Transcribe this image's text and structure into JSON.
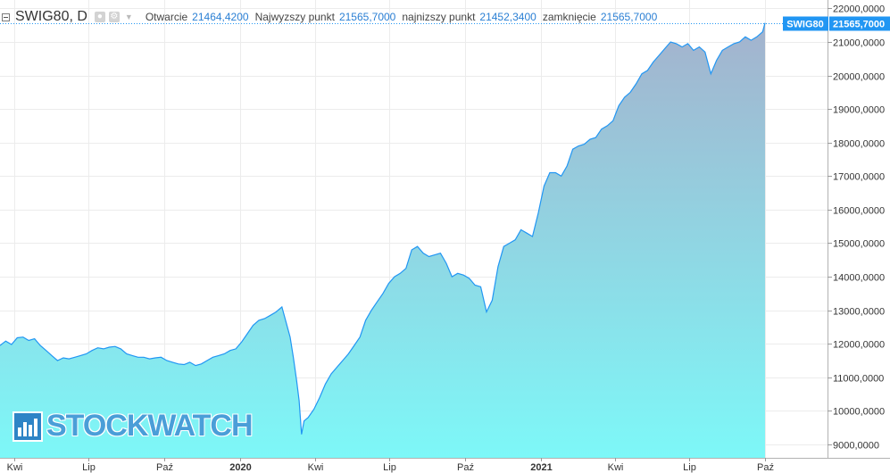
{
  "legend": {
    "symbol": "SWIG80, D",
    "items": [
      {
        "label": "Otwarcie",
        "value": "21464,4200"
      },
      {
        "label": "Najwyzszy punkt",
        "value": "21565,7000"
      },
      {
        "label": "najnizszy punkt",
        "value": "21452,3400"
      },
      {
        "label": "zamknięcie",
        "value": "21565,7000"
      }
    ]
  },
  "watermark": {
    "text": "STOCKWATCH"
  },
  "colors": {
    "line": "#2196f3",
    "area_top": "#a4b2cd",
    "area_bottom": "#7df8f8",
    "badge": "#2196f3"
  },
  "chart_data": {
    "type": "area",
    "series": [
      {
        "name": "SWIG80"
      }
    ],
    "last_label": {
      "name": "SWIG80",
      "value": "21565,7000"
    },
    "ylim": [
      8600,
      22250
    ],
    "y_ticks": [
      {
        "value": 9000,
        "label": "9000,0000"
      },
      {
        "value": 10000,
        "label": "10000,0000"
      },
      {
        "value": 11000,
        "label": "11000,0000"
      },
      {
        "value": 12000,
        "label": "12000,0000"
      },
      {
        "value": 13000,
        "label": "13000,0000"
      },
      {
        "value": 14000,
        "label": "14000,0000"
      },
      {
        "value": 15000,
        "label": "15000,0000"
      },
      {
        "value": 16000,
        "label": "16000,0000"
      },
      {
        "value": 17000,
        "label": "17000,0000"
      },
      {
        "value": 18000,
        "label": "18000,0000"
      },
      {
        "value": 19000,
        "label": "19000,0000"
      },
      {
        "value": 20000,
        "label": "20000,0000"
      },
      {
        "value": 21000,
        "label": "21000,0000"
      },
      {
        "value": 22000,
        "label": "22000,0000"
      }
    ],
    "x_ticks": [
      {
        "date": "2019-04-01",
        "label": "Kwi",
        "bold": false
      },
      {
        "date": "2019-07-01",
        "label": "Lip",
        "bold": false
      },
      {
        "date": "2019-10-01",
        "label": "Paź",
        "bold": false
      },
      {
        "date": "2020-01-01",
        "label": "2020",
        "bold": true
      },
      {
        "date": "2020-04-01",
        "label": "Kwi",
        "bold": false
      },
      {
        "date": "2020-07-01",
        "label": "Lip",
        "bold": false
      },
      {
        "date": "2020-10-01",
        "label": "Paź",
        "bold": false
      },
      {
        "date": "2021-01-01",
        "label": "2021",
        "bold": true
      },
      {
        "date": "2021-04-01",
        "label": "Kwi",
        "bold": false
      },
      {
        "date": "2021-07-01",
        "label": "Lip",
        "bold": false
      },
      {
        "date": "2021-10-01",
        "label": "Paź",
        "bold": false
      }
    ],
    "xlim": [
      "2019-03-15",
      "2021-12-16"
    ],
    "grid": true,
    "points": [
      [
        "2019-03-15",
        11950
      ],
      [
        "2019-03-22",
        12080
      ],
      [
        "2019-03-29",
        11980
      ],
      [
        "2019-04-05",
        12180
      ],
      [
        "2019-04-12",
        12200
      ],
      [
        "2019-04-19",
        12100
      ],
      [
        "2019-04-26",
        12150
      ],
      [
        "2019-05-03",
        11950
      ],
      [
        "2019-05-10",
        11800
      ],
      [
        "2019-05-17",
        11650
      ],
      [
        "2019-05-24",
        11500
      ],
      [
        "2019-05-31",
        11580
      ],
      [
        "2019-06-07",
        11550
      ],
      [
        "2019-06-14",
        11600
      ],
      [
        "2019-06-21",
        11650
      ],
      [
        "2019-06-28",
        11700
      ],
      [
        "2019-07-05",
        11800
      ],
      [
        "2019-07-12",
        11880
      ],
      [
        "2019-07-19",
        11850
      ],
      [
        "2019-07-26",
        11900
      ],
      [
        "2019-08-02",
        11920
      ],
      [
        "2019-08-09",
        11850
      ],
      [
        "2019-08-16",
        11700
      ],
      [
        "2019-08-23",
        11650
      ],
      [
        "2019-08-30",
        11600
      ],
      [
        "2019-09-06",
        11600
      ],
      [
        "2019-09-13",
        11550
      ],
      [
        "2019-09-20",
        11580
      ],
      [
        "2019-09-27",
        11600
      ],
      [
        "2019-10-04",
        11500
      ],
      [
        "2019-10-11",
        11450
      ],
      [
        "2019-10-18",
        11400
      ],
      [
        "2019-10-25",
        11380
      ],
      [
        "2019-11-01",
        11450
      ],
      [
        "2019-11-08",
        11350
      ],
      [
        "2019-11-15",
        11400
      ],
      [
        "2019-11-22",
        11500
      ],
      [
        "2019-11-29",
        11600
      ],
      [
        "2019-12-06",
        11650
      ],
      [
        "2019-12-13",
        11700
      ],
      [
        "2019-12-20",
        11800
      ],
      [
        "2019-12-27",
        11850
      ],
      [
        "2020-01-03",
        12050
      ],
      [
        "2020-01-10",
        12300
      ],
      [
        "2020-01-17",
        12550
      ],
      [
        "2020-01-24",
        12700
      ],
      [
        "2020-01-31",
        12750
      ],
      [
        "2020-02-07",
        12850
      ],
      [
        "2020-02-14",
        12950
      ],
      [
        "2020-02-21",
        13100
      ],
      [
        "2020-02-26",
        12650
      ],
      [
        "2020-03-02",
        12200
      ],
      [
        "2020-03-06",
        11600
      ],
      [
        "2020-03-10",
        10900
      ],
      [
        "2020-03-13",
        10300
      ],
      [
        "2020-03-16",
        9300
      ],
      [
        "2020-03-19",
        9700
      ],
      [
        "2020-03-24",
        9800
      ],
      [
        "2020-03-31",
        10050
      ],
      [
        "2020-04-07",
        10400
      ],
      [
        "2020-04-14",
        10800
      ],
      [
        "2020-04-21",
        11100
      ],
      [
        "2020-04-28",
        11300
      ],
      [
        "2020-05-05",
        11500
      ],
      [
        "2020-05-12",
        11700
      ],
      [
        "2020-05-19",
        11950
      ],
      [
        "2020-05-26",
        12200
      ],
      [
        "2020-06-02",
        12700
      ],
      [
        "2020-06-09",
        13000
      ],
      [
        "2020-06-16",
        13250
      ],
      [
        "2020-06-23",
        13500
      ],
      [
        "2020-06-30",
        13800
      ],
      [
        "2020-07-07",
        14000
      ],
      [
        "2020-07-14",
        14100
      ],
      [
        "2020-07-21",
        14250
      ],
      [
        "2020-07-28",
        14800
      ],
      [
        "2020-08-04",
        14900
      ],
      [
        "2020-08-11",
        14700
      ],
      [
        "2020-08-18",
        14600
      ],
      [
        "2020-08-25",
        14650
      ],
      [
        "2020-09-01",
        14700
      ],
      [
        "2020-09-08",
        14400
      ],
      [
        "2020-09-15",
        14000
      ],
      [
        "2020-09-22",
        14100
      ],
      [
        "2020-09-29",
        14050
      ],
      [
        "2020-10-06",
        13950
      ],
      [
        "2020-10-13",
        13750
      ],
      [
        "2020-10-20",
        13700
      ],
      [
        "2020-10-27",
        12950
      ],
      [
        "2020-11-03",
        13300
      ],
      [
        "2020-11-10",
        14300
      ],
      [
        "2020-11-17",
        14900
      ],
      [
        "2020-11-24",
        15000
      ],
      [
        "2020-12-01",
        15100
      ],
      [
        "2020-12-08",
        15400
      ],
      [
        "2020-12-15",
        15300
      ],
      [
        "2020-12-22",
        15200
      ],
      [
        "2020-12-29",
        15900
      ],
      [
        "2021-01-05",
        16700
      ],
      [
        "2021-01-12",
        17100
      ],
      [
        "2021-01-19",
        17100
      ],
      [
        "2021-01-26",
        17000
      ],
      [
        "2021-02-02",
        17300
      ],
      [
        "2021-02-09",
        17800
      ],
      [
        "2021-02-16",
        17900
      ],
      [
        "2021-02-23",
        17950
      ],
      [
        "2021-03-02",
        18100
      ],
      [
        "2021-03-09",
        18150
      ],
      [
        "2021-03-16",
        18400
      ],
      [
        "2021-03-23",
        18500
      ],
      [
        "2021-03-30",
        18650
      ],
      [
        "2021-04-06",
        19100
      ],
      [
        "2021-04-13",
        19350
      ],
      [
        "2021-04-20",
        19500
      ],
      [
        "2021-04-27",
        19750
      ],
      [
        "2021-05-04",
        20050
      ],
      [
        "2021-05-11",
        20150
      ],
      [
        "2021-05-18",
        20400
      ],
      [
        "2021-05-25",
        20600
      ],
      [
        "2021-06-01",
        20800
      ],
      [
        "2021-06-08",
        21000
      ],
      [
        "2021-06-15",
        20950
      ],
      [
        "2021-06-22",
        20850
      ],
      [
        "2021-06-29",
        20950
      ],
      [
        "2021-07-06",
        20750
      ],
      [
        "2021-07-13",
        20850
      ],
      [
        "2021-07-20",
        20700
      ],
      [
        "2021-07-27",
        20050
      ],
      [
        "2021-08-03",
        20450
      ],
      [
        "2021-08-10",
        20750
      ],
      [
        "2021-08-17",
        20850
      ],
      [
        "2021-08-24",
        20950
      ],
      [
        "2021-08-31",
        21000
      ],
      [
        "2021-09-07",
        21150
      ],
      [
        "2021-09-14",
        21050
      ],
      [
        "2021-09-21",
        21150
      ],
      [
        "2021-09-28",
        21300
      ],
      [
        "2021-10-01",
        21565.7
      ]
    ]
  }
}
